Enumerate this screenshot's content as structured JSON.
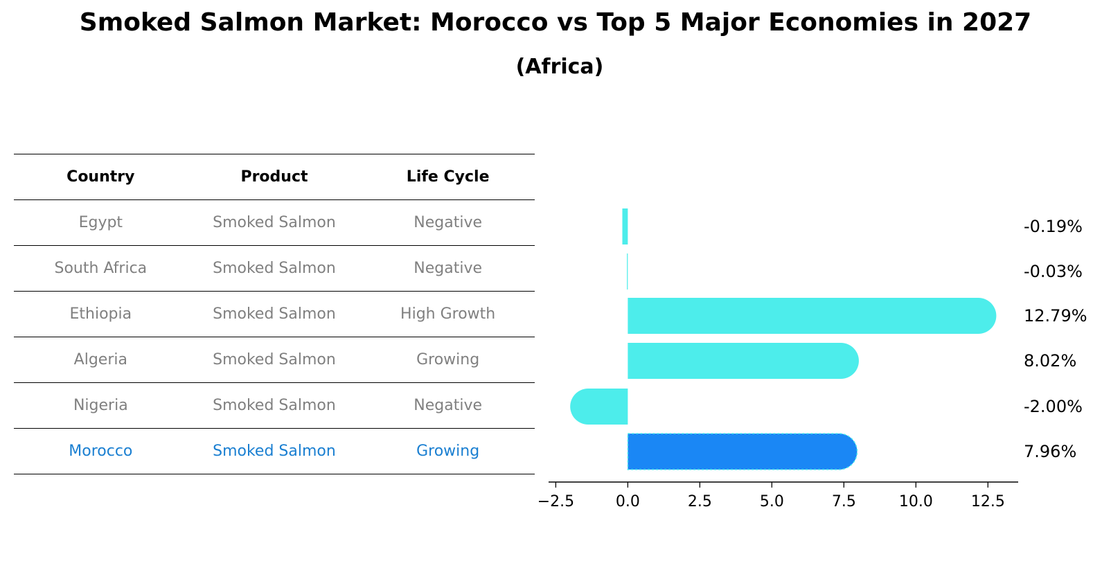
{
  "title": "Smoked Salmon Market: Morocco vs Top 5 Major Economies in 2027",
  "subtitle": "(Africa)",
  "table": {
    "headers": [
      "Country",
      "Product",
      "Life Cycle"
    ],
    "rows": [
      [
        "Egypt",
        "Smoked Salmon",
        "Negative"
      ],
      [
        "South Africa",
        "Smoked Salmon",
        "Negative"
      ],
      [
        "Ethiopia",
        "Smoked Salmon",
        "High Growth"
      ],
      [
        "Algeria",
        "Smoked Salmon",
        "Growing"
      ],
      [
        "Nigeria",
        "Smoked Salmon",
        "Negative"
      ],
      [
        "Morocco",
        "Smoked Salmon",
        "Growing"
      ]
    ]
  },
  "chart_data": {
    "type": "bar",
    "orientation": "horizontal",
    "categories": [
      "Egypt",
      "South Africa",
      "Ethiopia",
      "Algeria",
      "Nigeria",
      "Morocco"
    ],
    "values": [
      -0.19,
      -0.03,
      12.79,
      8.02,
      -2.0,
      7.96
    ],
    "value_labels": [
      "-0.19%",
      "-0.03%",
      "12.79%",
      "8.02%",
      "-2.00%",
      "7.96%"
    ],
    "highlight": "Morocco",
    "xlim": [
      -2.75,
      13.55
    ],
    "xticks": [
      -2.5,
      0.0,
      2.5,
      5.0,
      7.5,
      10.0,
      12.5
    ],
    "xtick_labels": [
      "−2.5",
      "0.0",
      "2.5",
      "5.0",
      "7.5",
      "10.0",
      "12.5"
    ],
    "colors": {
      "default": "#4dedeb",
      "highlight": "#1a87f5"
    }
  }
}
